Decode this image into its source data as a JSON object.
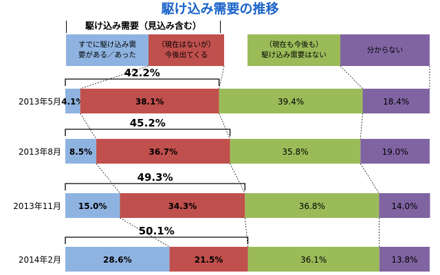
{
  "chart_data": {
    "type": "bar",
    "orientation": "horizontal-stacked-100",
    "title": "駆け込み需要の推移",
    "group_label": "駆け込み需要（見込み含む）",
    "categories": [
      "2013年5月",
      "2013年8月",
      "2013年11月",
      "2014年2月"
    ],
    "series": [
      {
        "name": "すでに駆け込み需要がある／あった",
        "color": "#8fb3e0",
        "values": [
          4.1,
          8.5,
          15.0,
          28.6
        ]
      },
      {
        "name": "（現在はないが）今後出てくる",
        "color": "#c0504d",
        "values": [
          38.1,
          36.7,
          34.3,
          21.5
        ]
      },
      {
        "name": "（現在も今後も）駆け込み需要はない",
        "color": "#9bbb59",
        "values": [
          39.4,
          35.8,
          36.8,
          36.1
        ]
      },
      {
        "name": "分からない",
        "color": "#8064a2",
        "values": [
          18.4,
          19.0,
          14.0,
          13.8
        ]
      }
    ],
    "data_labels": [
      [
        "4.1%",
        "38.1%",
        "39.4%",
        "18.4%"
      ],
      [
        "8.5%",
        "36.7%",
        "35.8%",
        "19.0%"
      ],
      [
        "15.0%",
        "34.3%",
        "36.8%",
        "14.0%"
      ],
      [
        "28.6%",
        "21.5%",
        "36.1%",
        "13.8%"
      ]
    ],
    "group_totals": [
      "42.2%",
      "45.2%",
      "49.3%",
      "50.1%"
    ],
    "legend_labels": [
      "すでに駆け込み需\n要がある／あった",
      "（現在はないが）\n今後出てくる",
      "（現在も今後も）\n駆け込み需要はない",
      "分からない"
    ],
    "xlim": [
      0,
      100
    ],
    "legend_position": "top",
    "grid": false
  }
}
